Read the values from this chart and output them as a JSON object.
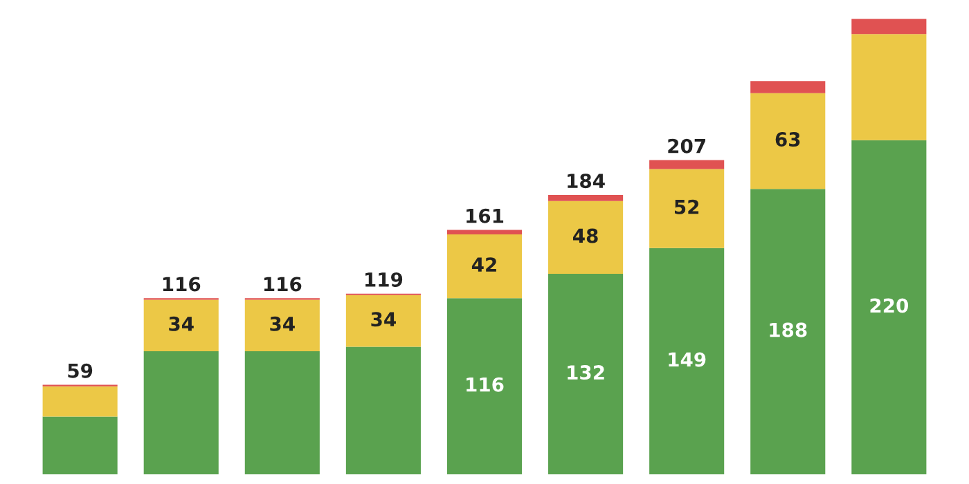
{
  "chart_data": {
    "type": "bar",
    "stacked": true,
    "categories": [
      null,
      null,
      null,
      null,
      null,
      null,
      null,
      null,
      null
    ],
    "series": [
      {
        "color": "#5aa24f",
        "values": [
          38,
          81,
          81,
          84,
          116,
          132,
          149,
          188,
          220
        ],
        "value_labels": [
          null,
          null,
          null,
          null,
          "116",
          "132",
          "149",
          "188",
          "220"
        ]
      },
      {
        "color": "#ecc846",
        "values": [
          20,
          34,
          34,
          34,
          42,
          48,
          52,
          63,
          70
        ],
        "value_labels": [
          null,
          "34",
          "34",
          "34",
          "42",
          "48",
          "52",
          "63",
          null
        ]
      },
      {
        "color": "#e05252",
        "values": [
          1,
          1,
          1,
          1,
          3,
          4,
          6,
          8,
          10
        ]
      }
    ],
    "totals": [
      "59",
      "116",
      "116",
      "119",
      "161",
      "184",
      "207",
      null,
      null
    ]
  }
}
